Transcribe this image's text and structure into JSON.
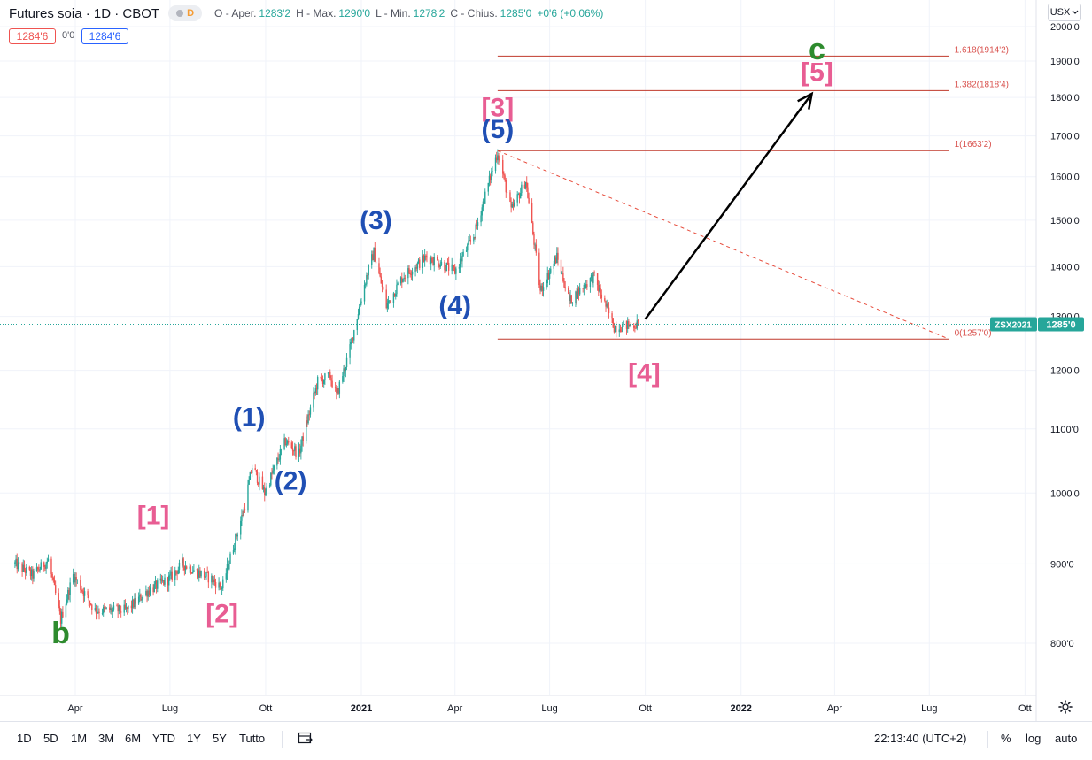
{
  "header": {
    "symbol": "Futures soia · 1D · CBOT",
    "d_badge": "D",
    "ohlc": [
      {
        "k": "O - Aper.",
        "v": "1283'2"
      },
      {
        "k": "H - Max.",
        "v": "1290'0"
      },
      {
        "k": "L - Min.",
        "v": "1278'2"
      },
      {
        "k": "C - Chius.",
        "v": "1285'0"
      },
      {
        "k": "",
        "v": "+0'6 (+0.06%)"
      }
    ],
    "sell_price": "1284'6",
    "spread": "0'0",
    "buy_price": "1284'6",
    "unit": "USX"
  },
  "chart_data": {
    "type": "candlestick",
    "x_labels": [
      "Apr",
      "Lug",
      "Ott",
      "2021",
      "Apr",
      "Lug",
      "Ott",
      "2022",
      "Apr",
      "Lug",
      "Ott"
    ],
    "y_ticks": [
      "800'0",
      "900'0",
      "1000'0",
      "1100'0",
      "1200'0",
      "1300'0",
      "1400'0",
      "1500'0",
      "1600'0",
      "1700'0",
      "1800'0",
      "1900'0",
      "2000'0"
    ],
    "y_values": [
      800,
      900,
      1000,
      1100,
      1200,
      1300,
      1400,
      1500,
      1600,
      1700,
      1800,
      1900,
      2000
    ],
    "ylim": [
      760,
      2010
    ],
    "price_path": [
      {
        "d": "2020-02-03",
        "p": 900
      },
      {
        "d": "2020-02-20",
        "p": 885
      },
      {
        "d": "2020-03-06",
        "p": 905
      },
      {
        "d": "2020-03-18",
        "p": 828
      },
      {
        "d": "2020-03-30",
        "p": 885
      },
      {
        "d": "2020-04-20",
        "p": 840
      },
      {
        "d": "2020-05-20",
        "p": 840
      },
      {
        "d": "2020-06-10",
        "p": 865
      },
      {
        "d": "2020-06-30",
        "p": 880
      },
      {
        "d": "2020-07-13",
        "p": 900
      },
      {
        "d": "2020-08-10",
        "p": 880
      },
      {
        "d": "2020-08-20",
        "p": 868
      },
      {
        "d": "2020-09-10",
        "p": 975
      },
      {
        "d": "2020-09-18",
        "p": 1040
      },
      {
        "d": "2020-09-30",
        "p": 1000
      },
      {
        "d": "2020-10-20",
        "p": 1080
      },
      {
        "d": "2020-11-02",
        "p": 1060
      },
      {
        "d": "2020-11-20",
        "p": 1180
      },
      {
        "d": "2020-12-02",
        "p": 1190
      },
      {
        "d": "2020-12-08",
        "p": 1155
      },
      {
        "d": "2020-12-20",
        "p": 1230
      },
      {
        "d": "2021-01-06",
        "p": 1380
      },
      {
        "d": "2021-01-13",
        "p": 1430
      },
      {
        "d": "2021-01-25",
        "p": 1320
      },
      {
        "d": "2021-02-10",
        "p": 1380
      },
      {
        "d": "2021-03-05",
        "p": 1420
      },
      {
        "d": "2021-03-20",
        "p": 1405
      },
      {
        "d": "2021-04-01",
        "p": 1390
      },
      {
        "d": "2021-04-20",
        "p": 1470
      },
      {
        "d": "2021-05-12",
        "p": 1660
      },
      {
        "d": "2021-05-25",
        "p": 1520
      },
      {
        "d": "2021-06-08",
        "p": 1590
      },
      {
        "d": "2021-06-22",
        "p": 1350
      },
      {
        "d": "2021-07-08",
        "p": 1420
      },
      {
        "d": "2021-07-20",
        "p": 1330
      },
      {
        "d": "2021-08-12",
        "p": 1380
      },
      {
        "d": "2021-09-01",
        "p": 1280
      },
      {
        "d": "2021-09-24",
        "p": 1285
      }
    ],
    "last_price": "1285'0",
    "last_label": "ZSX2021",
    "fib_levels": [
      {
        "label": "1.618(1914'2)",
        "value": 1914.25
      },
      {
        "label": "1.382(1818'4)",
        "value": 1818.5
      },
      {
        "label": "1(1663'2)",
        "value": 1663.25
      },
      {
        "label": "0(1257'0)",
        "value": 1257
      }
    ],
    "annotations": [
      {
        "text": "b",
        "color": "#2e8b2e",
        "x": "2020-03-18",
        "y": 800
      },
      {
        "text": "[1]",
        "color": "#e85d93",
        "x": "2020-06-15",
        "y": 955
      },
      {
        "text": "[2]",
        "color": "#e85d93",
        "x": "2020-08-20",
        "y": 825
      },
      {
        "text": "(1)",
        "color": "#1f4fb4",
        "x": "2020-09-15",
        "y": 1105
      },
      {
        "text": "(2)",
        "color": "#1f4fb4",
        "x": "2020-10-25",
        "y": 1005
      },
      {
        "text": "(3)",
        "color": "#1f4fb4",
        "x": "2021-01-15",
        "y": 1480
      },
      {
        "text": "(4)",
        "color": "#1f4fb4",
        "x": "2021-04-01",
        "y": 1305
      },
      {
        "text": "[3]",
        "color": "#e85d93",
        "x": "2021-05-12",
        "y": 1750
      },
      {
        "text": "(5)",
        "color": "#1f4fb4",
        "x": "2021-05-12",
        "y": 1695
      },
      {
        "text": "[4]",
        "color": "#e85d93",
        "x": "2021-09-30",
        "y": 1180
      },
      {
        "text": "[5]",
        "color": "#e85d93",
        "x": "2022-03-15",
        "y": 1845
      },
      {
        "text": "c",
        "color": "#2e8b2e",
        "x": "2022-03-15",
        "y": 1905
      }
    ],
    "arrow": {
      "from": {
        "x": "2021-10-01",
        "y": 1295
      },
      "to": {
        "x": "2022-03-10",
        "y": 1810
      }
    },
    "trendline": {
      "from": {
        "x": "2021-05-12",
        "y": 1663
      },
      "to": {
        "x": "2022-07-20",
        "y": 1257
      }
    },
    "grid": true
  },
  "bottom_bar": {
    "timeframes": [
      "1D",
      "5D",
      "1M",
      "3M",
      "6M",
      "YTD",
      "1Y",
      "5Y",
      "Tutto"
    ],
    "time": "22:13:40 (UTC+2)",
    "percent": "%",
    "log": "log",
    "auto": "auto"
  }
}
